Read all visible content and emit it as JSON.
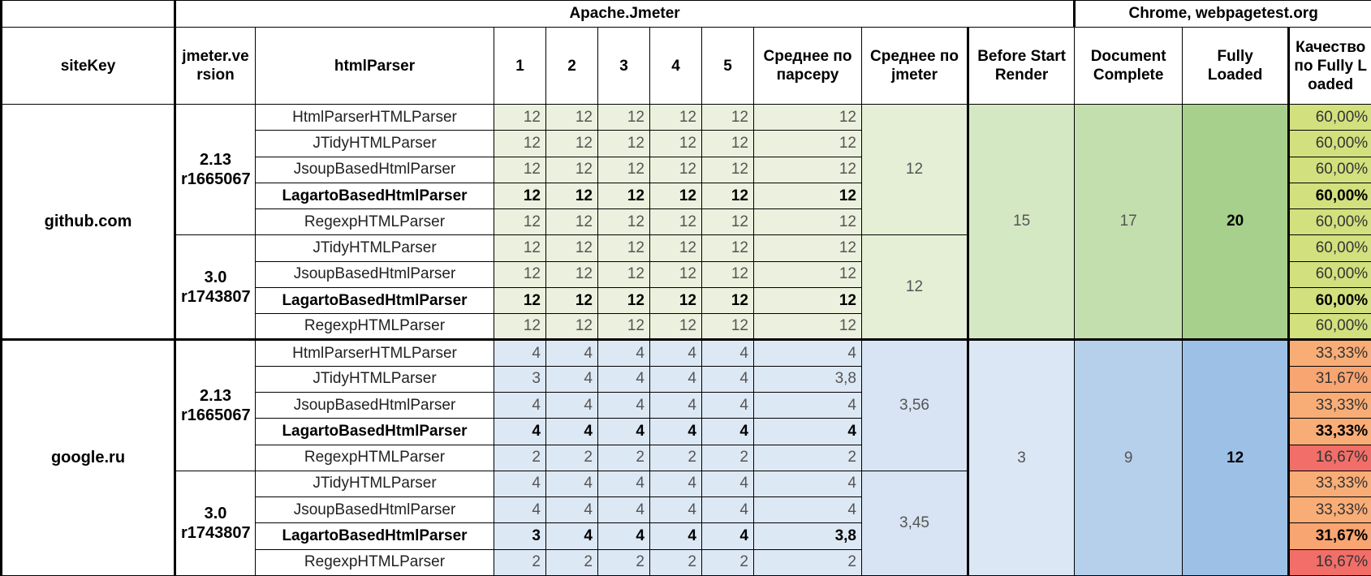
{
  "group_headers": {
    "apache": "Apache.Jmeter",
    "chrome": "Chrome, webpagetest.org"
  },
  "headers": {
    "sitekey": "siteKey",
    "jmeter_version": "jmeter.version",
    "html_parser": "htmlParser",
    "run1": "1",
    "run2": "2",
    "run3": "3",
    "run4": "4",
    "run5": "5",
    "avg_parser": "Среднее по парсеру",
    "avg_jmeter": "Среднее по jmeter",
    "before_start_render": "Before Start Render",
    "document_complete": "Document Complete",
    "fully_loaded": "Fully Loaded",
    "quality": "Качество по Fully Loaded"
  },
  "colors": {
    "github_runs": "#ebf1de",
    "github_avg_jmeter": "#e4efd6",
    "github_before": "#d5e8c4",
    "github_doc": "#c4dfae",
    "github_fully": "#a7d08c",
    "github_quality": "#d3e07e",
    "google_runs": "#dde8f5",
    "google_avg_jmeter": "#d8e4f3",
    "google_before": "#dbe7f4",
    "google_doc": "#b6d0ec",
    "google_fully": "#9dc1e6",
    "quality_33_33": "#f9ad76",
    "quality_31_67": "#f8a572",
    "quality_16_67": "#f16f68"
  },
  "sites": [
    {
      "site": "github.com",
      "before_start_render": "15",
      "document_complete": "17",
      "fully_loaded": "20",
      "versions": [
        {
          "version": "2.13 r1665067",
          "avg_jmeter": "12",
          "rows": [
            {
              "parser": "HtmlParserHTMLParser",
              "runs": [
                "12",
                "12",
                "12",
                "12",
                "12"
              ],
              "avg": "12",
              "quality": "60,00%",
              "bold": false
            },
            {
              "parser": "JTidyHTMLParser",
              "runs": [
                "12",
                "12",
                "12",
                "12",
                "12"
              ],
              "avg": "12",
              "quality": "60,00%",
              "bold": false
            },
            {
              "parser": "JsoupBasedHtmlParser",
              "runs": [
                "12",
                "12",
                "12",
                "12",
                "12"
              ],
              "avg": "12",
              "quality": "60,00%",
              "bold": false
            },
            {
              "parser": "LagartoBasedHtmlParser",
              "runs": [
                "12",
                "12",
                "12",
                "12",
                "12"
              ],
              "avg": "12",
              "quality": "60,00%",
              "bold": true
            },
            {
              "parser": "RegexpHTMLParser",
              "runs": [
                "12",
                "12",
                "12",
                "12",
                "12"
              ],
              "avg": "12",
              "quality": "60,00%",
              "bold": false
            }
          ]
        },
        {
          "version": "3.0 r1743807",
          "avg_jmeter": "12",
          "rows": [
            {
              "parser": "JTidyHTMLParser",
              "runs": [
                "12",
                "12",
                "12",
                "12",
                "12"
              ],
              "avg": "12",
              "quality": "60,00%",
              "bold": false
            },
            {
              "parser": "JsoupBasedHtmlParser",
              "runs": [
                "12",
                "12",
                "12",
                "12",
                "12"
              ],
              "avg": "12",
              "quality": "60,00%",
              "bold": false
            },
            {
              "parser": "LagartoBasedHtmlParser",
              "runs": [
                "12",
                "12",
                "12",
                "12",
                "12"
              ],
              "avg": "12",
              "quality": "60,00%",
              "bold": true
            },
            {
              "parser": "RegexpHTMLParser",
              "runs": [
                "12",
                "12",
                "12",
                "12",
                "12"
              ],
              "avg": "12",
              "quality": "60,00%",
              "bold": false
            }
          ]
        }
      ]
    },
    {
      "site": "google.ru",
      "before_start_render": "3",
      "document_complete": "9",
      "fully_loaded": "12",
      "versions": [
        {
          "version": "2.13 r1665067",
          "avg_jmeter": "3,56",
          "rows": [
            {
              "parser": "HtmlParserHTMLParser",
              "runs": [
                "4",
                "4",
                "4",
                "4",
                "4"
              ],
              "avg": "4",
              "quality": "33,33%",
              "bold": false
            },
            {
              "parser": "JTidyHTMLParser",
              "runs": [
                "3",
                "4",
                "4",
                "4",
                "4"
              ],
              "avg": "3,8",
              "quality": "31,67%",
              "bold": false
            },
            {
              "parser": "JsoupBasedHtmlParser",
              "runs": [
                "4",
                "4",
                "4",
                "4",
                "4"
              ],
              "avg": "4",
              "quality": "33,33%",
              "bold": false
            },
            {
              "parser": "LagartoBasedHtmlParser",
              "runs": [
                "4",
                "4",
                "4",
                "4",
                "4"
              ],
              "avg": "4",
              "quality": "33,33%",
              "bold": true
            },
            {
              "parser": "RegexpHTMLParser",
              "runs": [
                "2",
                "2",
                "2",
                "2",
                "2"
              ],
              "avg": "2",
              "quality": "16,67%",
              "bold": false
            }
          ]
        },
        {
          "version": "3.0 r1743807",
          "avg_jmeter": "3,45",
          "rows": [
            {
              "parser": "JTidyHTMLParser",
              "runs": [
                "4",
                "4",
                "4",
                "4",
                "4"
              ],
              "avg": "4",
              "quality": "33,33%",
              "bold": false
            },
            {
              "parser": "JsoupBasedHtmlParser",
              "runs": [
                "4",
                "4",
                "4",
                "4",
                "4"
              ],
              "avg": "4",
              "quality": "33,33%",
              "bold": false
            },
            {
              "parser": "LagartoBasedHtmlParser",
              "runs": [
                "3",
                "4",
                "4",
                "4",
                "4"
              ],
              "avg": "3,8",
              "quality": "31,67%",
              "bold": true
            },
            {
              "parser": "RegexpHTMLParser",
              "runs": [
                "2",
                "2",
                "2",
                "2",
                "2"
              ],
              "avg": "2",
              "quality": "16,67%",
              "bold": false
            }
          ]
        }
      ]
    }
  ]
}
